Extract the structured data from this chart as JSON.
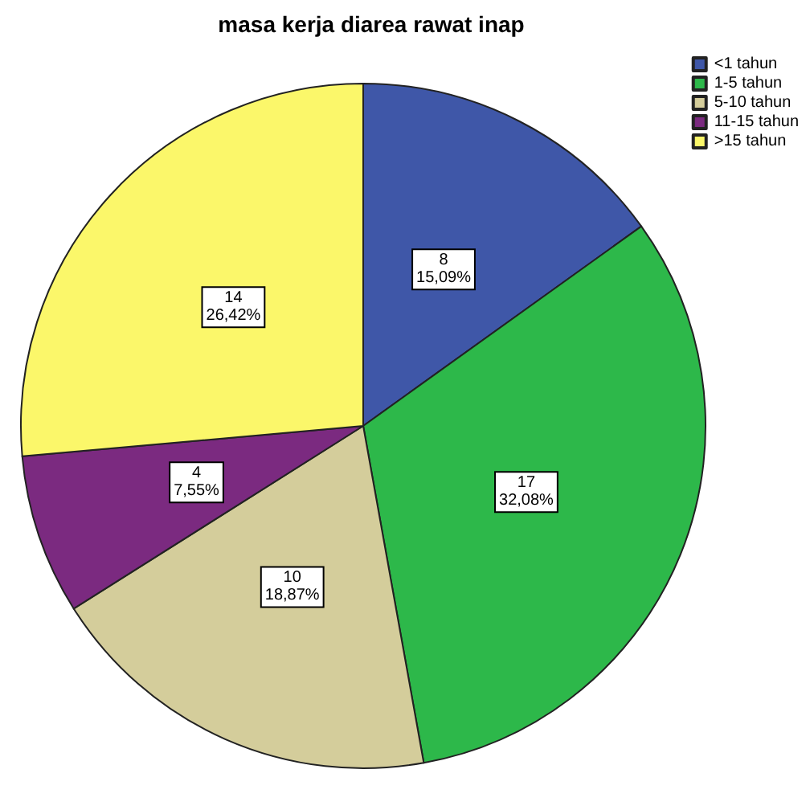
{
  "chart_data": {
    "type": "pie",
    "title": "masa kerja diarea rawat inap",
    "categories": [
      "<1 tahun",
      "1-5 tahun",
      "5-10 tahun",
      "11-15 tahun",
      ">15 tahun"
    ],
    "values": [
      8,
      17,
      10,
      4,
      14
    ],
    "colors": [
      "#3f57a8",
      "#2db84a",
      "#d4cd9b",
      "#7b2a80",
      "#fbf76a"
    ],
    "value_labels": [
      "8\n15,09%",
      "17\n32,08%",
      "10\n18,87%",
      "4\n7,55%",
      "14\n26,42%"
    ],
    "legend": "top right"
  }
}
